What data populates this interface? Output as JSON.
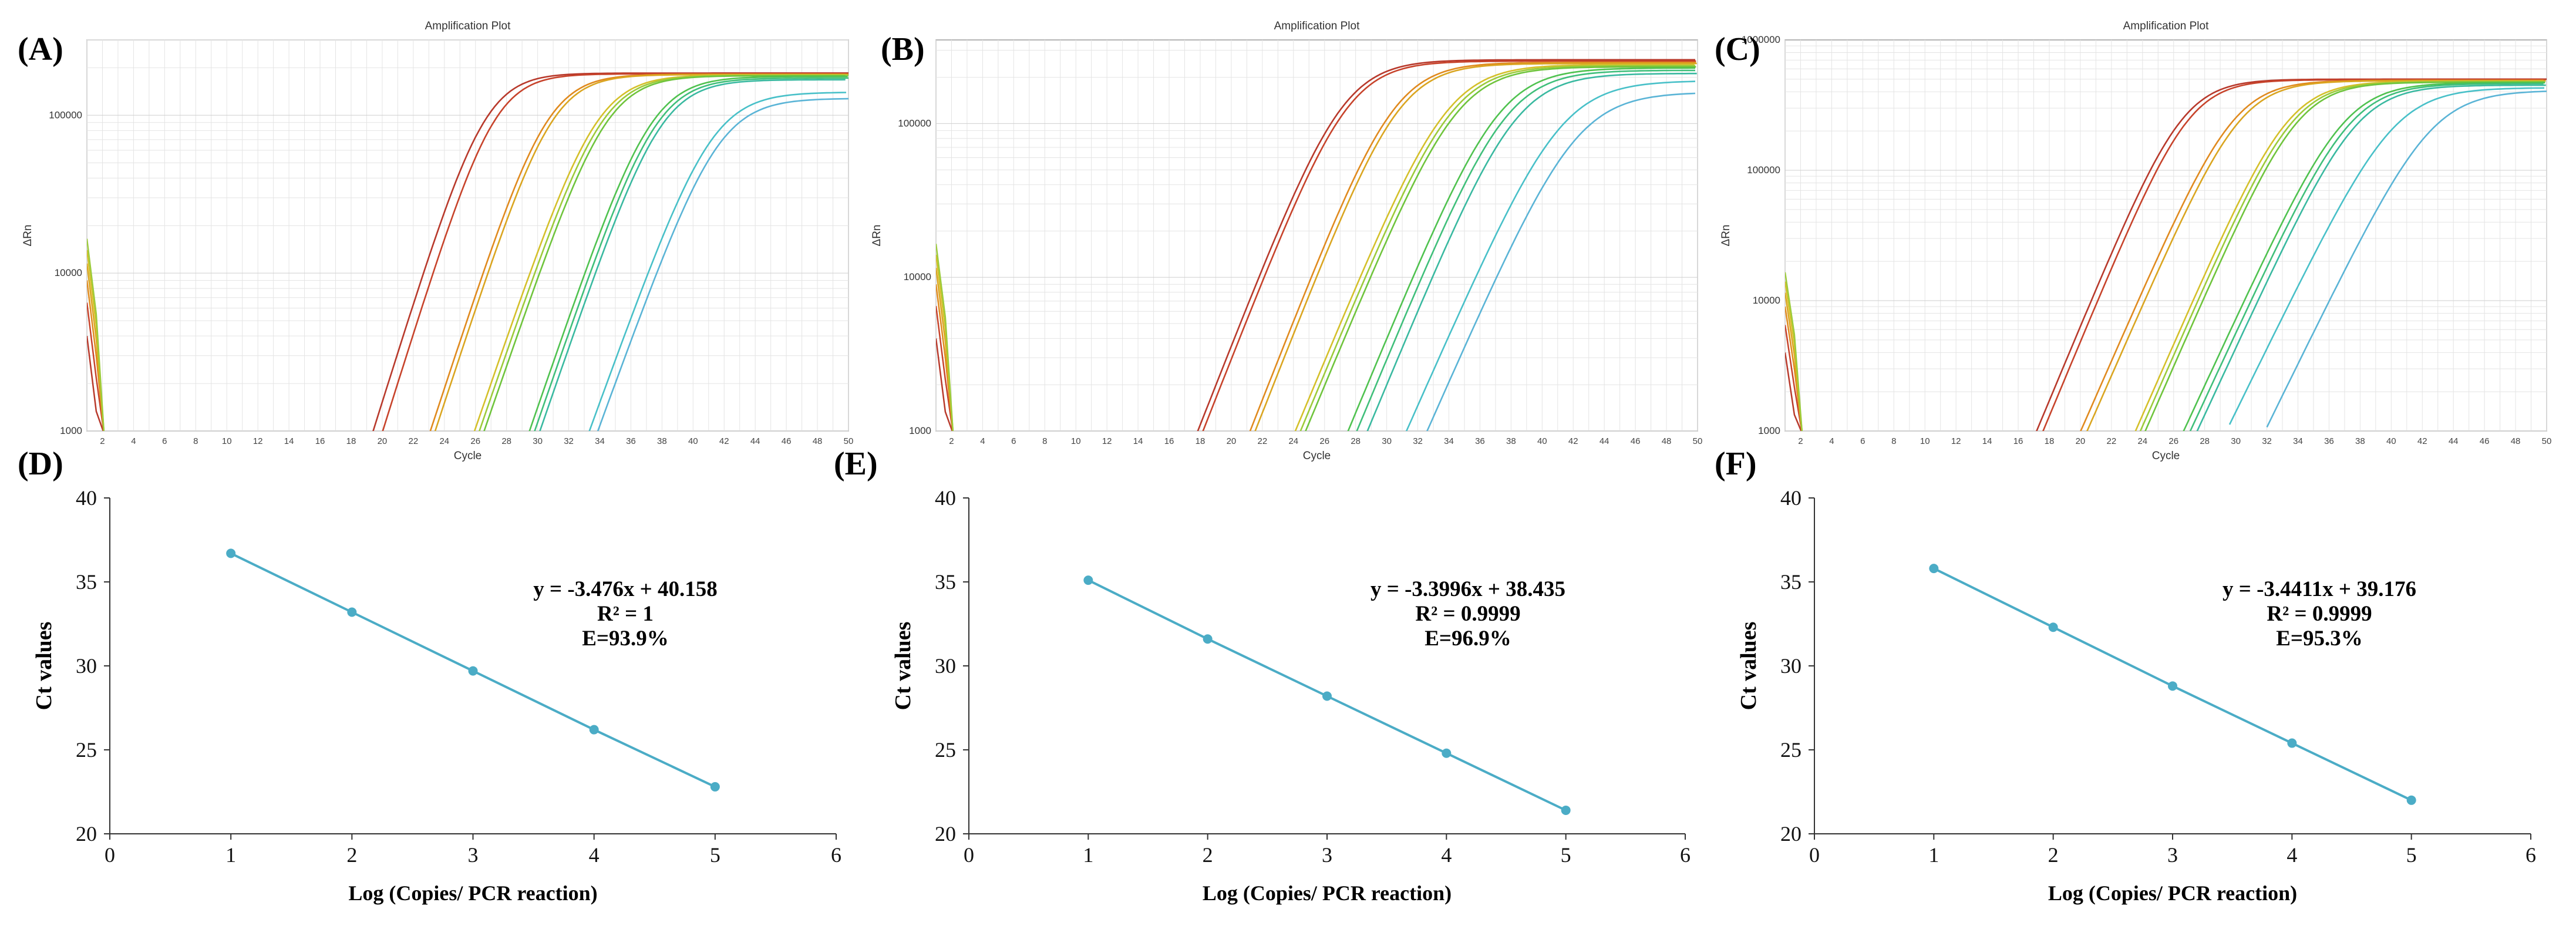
{
  "figure_colors": {
    "curve_palette": [
      "#c0392b",
      "#d35400",
      "#e67e22",
      "#daa520",
      "#d4c02a",
      "#a8cf3a",
      "#7ecb3c",
      "#5bc24f",
      "#3fbf7a",
      "#39b9a0",
      "#45bcc0",
      "#5ab4d6"
    ],
    "std_line": "#4bacc6",
    "grid": "#e4e4e4",
    "axis": "#9a9a9a"
  },
  "chart_data": [
    {
      "panel": "(A)",
      "type": "line",
      "title": "Amplification Plot",
      "xlabel": "Cycle",
      "ylabel": "ΔRn",
      "yscale": "log",
      "xlim": [
        1,
        50
      ],
      "ylim": [
        1000,
        300000
      ],
      "x_ticks": [
        2,
        4,
        6,
        8,
        10,
        12,
        14,
        16,
        18,
        20,
        22,
        24,
        26,
        28,
        30,
        32,
        34,
        36,
        38,
        40,
        42,
        44,
        46,
        48,
        50
      ],
      "y_tick_labels": [
        "1000",
        "10000",
        "100000"
      ],
      "y_tick_values": [
        1000,
        10000,
        100000
      ],
      "plateau": 185000,
      "series": [
        {
          "ct": 19.0,
          "rate": 0.22,
          "plateau": 185000,
          "color": "#b8392b"
        },
        {
          "ct": 19.6,
          "rate": 0.22,
          "plateau": 183000,
          "color": "#c7432b"
        },
        {
          "ct": 23.0,
          "rate": 0.21,
          "plateau": 182000,
          "color": "#e08a1e"
        },
        {
          "ct": 23.3,
          "rate": 0.21,
          "plateau": 181000,
          "color": "#daa520"
        },
        {
          "ct": 26.2,
          "rate": 0.2,
          "plateau": 180000,
          "color": "#d4c02a"
        },
        {
          "ct": 26.5,
          "rate": 0.2,
          "plateau": 179000,
          "color": "#9ccb3a"
        },
        {
          "ct": 26.8,
          "rate": 0.2,
          "plateau": 178000,
          "color": "#6fc43c"
        },
        {
          "ct": 29.7,
          "rate": 0.2,
          "plateau": 176000,
          "color": "#4fc24f"
        },
        {
          "ct": 30.0,
          "rate": 0.2,
          "plateau": 172000,
          "color": "#3fbf7a"
        },
        {
          "ct": 30.3,
          "rate": 0.2,
          "plateau": 168000,
          "color": "#39b9a0"
        },
        {
          "ct": 33.6,
          "rate": 0.19,
          "plateau": 140000,
          "color": "#48c0c8"
        },
        {
          "ct": 34.0,
          "rate": 0.19,
          "plateau": 128000,
          "color": "#5ab4d6"
        }
      ]
    },
    {
      "panel": "(B)",
      "type": "line",
      "title": "Amplification Plot",
      "xlabel": "Cycle",
      "ylabel": "ΔRn",
      "yscale": "log",
      "xlim": [
        1,
        50
      ],
      "ylim": [
        1000,
        350000
      ],
      "x_ticks": [
        2,
        4,
        6,
        8,
        10,
        12,
        14,
        16,
        18,
        20,
        22,
        24,
        26,
        28,
        30,
        32,
        34,
        36,
        38,
        40,
        42,
        44,
        46,
        48,
        50
      ],
      "y_tick_labels": [
        "1000",
        "10000",
        "100000"
      ],
      "y_tick_values": [
        1000,
        10000,
        100000
      ],
      "series": [
        {
          "ct": 19.6,
          "rate": 0.18,
          "plateau": 260000,
          "color": "#b8392b"
        },
        {
          "ct": 19.9,
          "rate": 0.18,
          "plateau": 255000,
          "color": "#c7432b"
        },
        {
          "ct": 22.9,
          "rate": 0.18,
          "plateau": 250000,
          "color": "#e08a1e"
        },
        {
          "ct": 23.2,
          "rate": 0.18,
          "plateau": 246000,
          "color": "#daa520"
        },
        {
          "ct": 26.3,
          "rate": 0.17,
          "plateau": 242000,
          "color": "#d4c02a"
        },
        {
          "ct": 26.6,
          "rate": 0.17,
          "plateau": 238000,
          "color": "#9ccb3a"
        },
        {
          "ct": 26.9,
          "rate": 0.17,
          "plateau": 234000,
          "color": "#6fc43c"
        },
        {
          "ct": 29.6,
          "rate": 0.17,
          "plateau": 230000,
          "color": "#4fc24f"
        },
        {
          "ct": 30.1,
          "rate": 0.17,
          "plateau": 222000,
          "color": "#3fbf7a"
        },
        {
          "ct": 30.7,
          "rate": 0.17,
          "plateau": 212000,
          "color": "#39b9a0"
        },
        {
          "ct": 33.6,
          "rate": 0.16,
          "plateau": 190000,
          "color": "#48c0c8"
        },
        {
          "ct": 34.6,
          "rate": 0.16,
          "plateau": 160000,
          "color": "#5ab4d6"
        }
      ]
    },
    {
      "panel": "(C)",
      "type": "line",
      "title": "Amplification Plot",
      "xlabel": "Cycle",
      "ylabel": "ΔRn",
      "yscale": "log",
      "xlim": [
        1,
        50
      ],
      "ylim": [
        1000,
        1000000
      ],
      "x_ticks": [
        2,
        4,
        6,
        8,
        10,
        12,
        14,
        16,
        18,
        20,
        22,
        24,
        26,
        28,
        30,
        32,
        34,
        36,
        38,
        40,
        42,
        44,
        46,
        48,
        50
      ],
      "y_tick_labels": [
        "1000",
        "10000",
        "100000",
        "1000000"
      ],
      "y_tick_values": [
        1000,
        10000,
        100000,
        1000000
      ],
      "series": [
        {
          "ct": 19.0,
          "rate": 0.2,
          "plateau": 500000,
          "color": "#b8392b"
        },
        {
          "ct": 19.4,
          "rate": 0.2,
          "plateau": 495000,
          "color": "#c7432b"
        },
        {
          "ct": 22.3,
          "rate": 0.19,
          "plateau": 490000,
          "color": "#e08a1e"
        },
        {
          "ct": 22.7,
          "rate": 0.19,
          "plateau": 486000,
          "color": "#daa520"
        },
        {
          "ct": 25.8,
          "rate": 0.19,
          "plateau": 482000,
          "color": "#d4c02a"
        },
        {
          "ct": 26.1,
          "rate": 0.19,
          "plateau": 478000,
          "color": "#9ccb3a"
        },
        {
          "ct": 26.4,
          "rate": 0.19,
          "plateau": 474000,
          "color": "#6fc43c"
        },
        {
          "ct": 29.4,
          "rate": 0.18,
          "plateau": 470000,
          "color": "#4fc24f"
        },
        {
          "ct": 29.8,
          "rate": 0.18,
          "plateau": 462000,
          "color": "#3fbf7a"
        },
        {
          "ct": 30.2,
          "rate": 0.18,
          "plateau": 450000,
          "color": "#39b9a0"
        },
        {
          "ct": 32.6,
          "rate": 0.17,
          "plateau": 430000,
          "color": "#48c0c8"
        },
        {
          "ct": 35.0,
          "rate": 0.17,
          "plateau": 410000,
          "color": "#5ab4d6"
        }
      ]
    },
    {
      "panel": "(D)",
      "type": "scatter",
      "xlabel": "Log (Copies/ PCR reaction)",
      "ylabel": "Ct values",
      "xlim": [
        0,
        6
      ],
      "ylim": [
        20,
        40
      ],
      "x_ticks": [
        0,
        1,
        2,
        3,
        4,
        5,
        6
      ],
      "y_ticks": [
        20,
        25,
        30,
        35,
        40
      ],
      "x": [
        1,
        2,
        3,
        4,
        5
      ],
      "y": [
        36.7,
        33.2,
        29.7,
        26.2,
        22.8
      ],
      "equation": "y = -3.476x + 40.158",
      "r2": "R² = 1",
      "efficiency": "E=93.9%"
    },
    {
      "panel": "(E)",
      "type": "scatter",
      "xlabel": "Log (Copies/ PCR reaction)",
      "ylabel": "Ct values",
      "xlim": [
        0,
        6
      ],
      "ylim": [
        20,
        40
      ],
      "x_ticks": [
        0,
        1,
        2,
        3,
        4,
        5,
        6
      ],
      "y_ticks": [
        20,
        25,
        30,
        35,
        40
      ],
      "x": [
        1,
        2,
        3,
        4,
        5
      ],
      "y": [
        35.1,
        31.6,
        28.2,
        24.8,
        21.4
      ],
      "equation": "y = -3.3996x + 38.435",
      "r2": "R² = 0.9999",
      "efficiency": "E=96.9%"
    },
    {
      "panel": "(F)",
      "type": "scatter",
      "xlabel": "Log (Copies/ PCR reaction)",
      "ylabel": "Ct values",
      "xlim": [
        0,
        6
      ],
      "ylim": [
        20,
        40
      ],
      "x_ticks": [
        0,
        1,
        2,
        3,
        4,
        5,
        6
      ],
      "y_ticks": [
        20,
        25,
        30,
        35,
        40
      ],
      "x": [
        1,
        2,
        3,
        4,
        5
      ],
      "y": [
        35.8,
        32.3,
        28.8,
        25.4,
        22.0
      ],
      "equation": "y = -3.4411x + 39.176",
      "r2": "R² = 0.9999",
      "efficiency": "E=95.3%"
    }
  ]
}
